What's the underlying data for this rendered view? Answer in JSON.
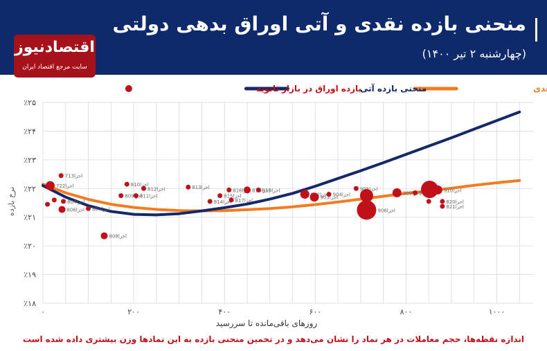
{
  "header": {
    "title": "منحنی بازده نقدی و آتی اوراق بدهی دولتی",
    "subtitle": "(چهارشنبه ۲ تیر ۱۴۰۰)"
  },
  "logo": {
    "name": "اقتصادنیوز",
    "tagline": "سایت مرجع اقتصاد ایران"
  },
  "footnote": "اندازه نقطه‌ها، حجم معاملات در هر نماد را نشان می‌دهد و در تخمین منحنی بازده به این نمادها وزن بیشتری داده شده است",
  "colors": {
    "header_bg": "#0f2a6b",
    "spot_curve": "#f47b20",
    "forward_curve": "#14286b",
    "bonds": "#c0101a",
    "grid": "#d9d9d9"
  },
  "chart_data": {
    "type": "scatter",
    "xlabel": "روزهای باقی‌مانده تا سررسید",
    "ylabel": "نرخ بازده",
    "xlim": [
      0,
      1080
    ],
    "ylim": [
      18,
      25
    ],
    "x_ticks": [
      "۰",
      "۲۰۰",
      "۴۰۰",
      "۶۰۰",
      "۸۰۰",
      "۱۰۰۰"
    ],
    "x_tick_values": [
      0,
      200,
      400,
      600,
      800,
      1000
    ],
    "y_ticks": [
      "٪۱۸",
      "٪۱۹",
      "٪۲۰",
      "٪۲۱",
      "٪۲۲",
      "٪۲۳",
      "٪۲۴",
      "٪۲۵"
    ],
    "y_tick_values": [
      18,
      19,
      20,
      21,
      22,
      23,
      24,
      25
    ],
    "grid": true,
    "legend": [
      {
        "label": "منحنی بازده نقدی",
        "type": "line",
        "color": "#f47b20"
      },
      {
        "label": "منحنی بازده آتی",
        "type": "line",
        "color": "#14286b"
      },
      {
        "label": "بازده اوراق در بازار ثانویه",
        "type": "dot",
        "color": "#c0101a"
      }
    ],
    "legend_position": "top",
    "series": [
      {
        "name": "منحنی بازده نقدی",
        "x": [
          0,
          50,
          100,
          150,
          200,
          250,
          300,
          350,
          400,
          450,
          500,
          550,
          600,
          650,
          700,
          750,
          800,
          850,
          900,
          950,
          1000,
          1050
        ],
        "values": [
          22.15,
          21.85,
          21.62,
          21.45,
          21.34,
          21.27,
          21.23,
          21.22,
          21.23,
          21.26,
          21.3,
          21.36,
          21.44,
          21.53,
          21.63,
          21.73,
          21.83,
          21.92,
          22.01,
          22.11,
          22.2,
          22.28
        ]
      },
      {
        "name": "منحنی بازده آتی",
        "x": [
          0,
          50,
          100,
          150,
          200,
          250,
          300,
          350,
          400,
          450,
          500,
          550,
          600,
          650,
          700,
          750,
          800,
          850,
          900,
          950,
          1000,
          1050
        ],
        "values": [
          22.1,
          21.7,
          21.4,
          21.2,
          21.1,
          21.08,
          21.12,
          21.22,
          21.33,
          21.46,
          21.63,
          21.83,
          22.08,
          22.35,
          22.62,
          22.9,
          23.19,
          23.48,
          23.77,
          24.07,
          24.37,
          24.67
        ]
      },
      {
        "name": "بازده اوراق در بازار ثانویه",
        "points": [
          {
            "label": "اخزا713",
            "x": 40,
            "y": 22.45,
            "size": 1
          },
          {
            "label": "اخزا722",
            "x": 16,
            "y": 22.1,
            "size": 3
          },
          {
            "label": "",
            "x": 10,
            "y": 21.45,
            "size": 1
          },
          {
            "label": "",
            "x": 25,
            "y": 21.6,
            "size": 1
          },
          {
            "label": "اخزا804",
            "x": 45,
            "y": 21.55,
            "size": 1
          },
          {
            "label": "اخزا806",
            "x": 42,
            "y": 21.27,
            "size": 2
          },
          {
            "label": "اخزا807",
            "x": 100,
            "y": 21.3,
            "size": 1
          },
          {
            "label": "اخزا808",
            "x": 135,
            "y": 20.35,
            "size": 2
          },
          {
            "label": "اخزا809",
            "x": 172,
            "y": 21.75,
            "size": 1
          },
          {
            "label": "اخزا810",
            "x": 185,
            "y": 22.15,
            "size": 1
          },
          {
            "label": "اخزا811",
            "x": 205,
            "y": 21.75,
            "size": 1
          },
          {
            "label": "اخزا812",
            "x": 222,
            "y": 22.0,
            "size": 1
          },
          {
            "label": "اخزا813",
            "x": 320,
            "y": 22.05,
            "size": 1
          },
          {
            "label": "اخزا814",
            "x": 368,
            "y": 21.55,
            "size": 1
          },
          {
            "label": "اخزا815",
            "x": 390,
            "y": 21.75,
            "size": 1
          },
          {
            "label": "اخزا816",
            "x": 410,
            "y": 21.95,
            "size": 1
          },
          {
            "label": "اخزا817",
            "x": 415,
            "y": 21.6,
            "size": 1
          },
          {
            "label": "اخزا818",
            "x": 450,
            "y": 21.95,
            "size": 2
          },
          {
            "label": "اخزا819",
            "x": 475,
            "y": 21.95,
            "size": 1
          },
          {
            "label": "اخزا902",
            "x": 577,
            "y": 21.8,
            "size": 3
          },
          {
            "label": "اخزا903",
            "x": 598,
            "y": 21.7,
            "size": 3
          },
          {
            "label": "اخزا904",
            "x": 630,
            "y": 21.8,
            "size": 1
          },
          {
            "label": "اخزا905",
            "x": 690,
            "y": 22.0,
            "size": 1
          },
          {
            "label": "اخزا906",
            "x": 713,
            "y": 21.25,
            "size": 8
          },
          {
            "label": "",
            "x": 713,
            "y": 21.75,
            "size": 5
          },
          {
            "label": "اخزا909",
            "x": 780,
            "y": 21.85,
            "size": 3
          },
          {
            "label": "اخزا908",
            "x": 820,
            "y": 21.85,
            "size": 1
          },
          {
            "label": "",
            "x": 850,
            "y": 21.55,
            "size": 1
          },
          {
            "label": "",
            "x": 852,
            "y": 21.97,
            "size": 7
          },
          {
            "label": "اخزا910",
            "x": 870,
            "y": 21.95,
            "size": 3
          },
          {
            "label": "اخزا820",
            "x": 880,
            "y": 21.55,
            "size": 1
          },
          {
            "label": "اخزا821",
            "x": 880,
            "y": 21.38,
            "size": 1
          }
        ]
      }
    ]
  }
}
